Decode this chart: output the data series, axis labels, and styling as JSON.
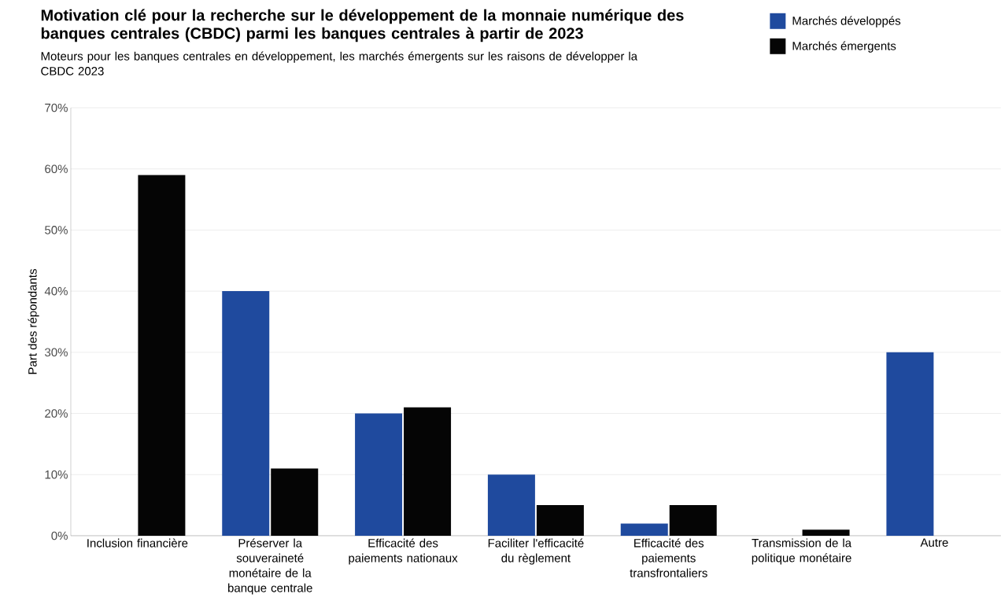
{
  "chart_data": {
    "type": "bar",
    "title": "Motivation clé pour la recherche sur le développement de la monnaie numérique des banques centrales (CBDC) parmi les banques centrales à partir de 2023",
    "subtitle": "Moteurs pour les banques centrales en développement, les marchés émergents sur les raisons de développer la CBDC 2023",
    "ylabel": "Part des répondants",
    "categories": [
      "Inclusion financière",
      "Préserver la souveraineté monétaire de la banque centrale",
      "Efficacité des paiements nationaux",
      "Faciliter l'efficacité du règlement",
      "Efficacité des paiements transfrontaliers",
      "Transmission de la politique monétaire",
      "Autre"
    ],
    "series": [
      {
        "name": "Marchés développés",
        "color": "#1f4a9e",
        "values": [
          0,
          40,
          20,
          10,
          2,
          0,
          30
        ]
      },
      {
        "name": "Marchés émergents",
        "color": "#050505",
        "values": [
          59,
          11,
          21,
          5,
          5,
          1,
          0
        ]
      }
    ],
    "ylim": [
      0,
      70
    ],
    "yticks": [
      {
        "value": 0,
        "label": "0%"
      },
      {
        "value": 10,
        "label": "10%"
      },
      {
        "value": 20,
        "label": "20%"
      },
      {
        "value": 30,
        "label": "30%"
      },
      {
        "value": 40,
        "label": "40%"
      },
      {
        "value": 50,
        "label": "50%"
      },
      {
        "value": 60,
        "label": "60%"
      },
      {
        "value": 70,
        "label": "70%"
      }
    ],
    "grid": "y",
    "legend": "top right"
  }
}
